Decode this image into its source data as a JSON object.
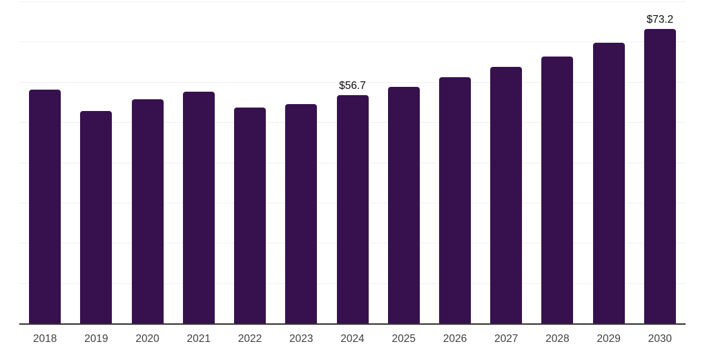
{
  "chart_data": {
    "type": "bar",
    "title": "",
    "xlabel": "",
    "ylabel": "",
    "legend": "none",
    "grid": "horizontal gridlines every 10 units, light gray",
    "ylim": [
      0,
      80
    ],
    "gridline_step": 10,
    "categories": [
      "2018",
      "2019",
      "2020",
      "2021",
      "2022",
      "2023",
      "2024",
      "2025",
      "2026",
      "2027",
      "2028",
      "2029",
      "2030"
    ],
    "values": [
      58.0,
      52.8,
      55.6,
      57.6,
      53.7,
      54.4,
      56.7,
      58.7,
      61.2,
      63.8,
      66.3,
      69.8,
      73.2
    ],
    "value_prefix": "$",
    "labeled_points": [
      {
        "category": "2024",
        "index": 6,
        "label": "$56.7"
      },
      {
        "category": "2030",
        "index": 12,
        "label": "$73.2"
      }
    ]
  },
  "colors": {
    "bar_fill": "#37114E",
    "gridline": "#f0f0f0",
    "axis_line": "#333333",
    "x_label_text": "#404040",
    "value_label_text": "#0d0d0d",
    "background": "#ffffff"
  }
}
